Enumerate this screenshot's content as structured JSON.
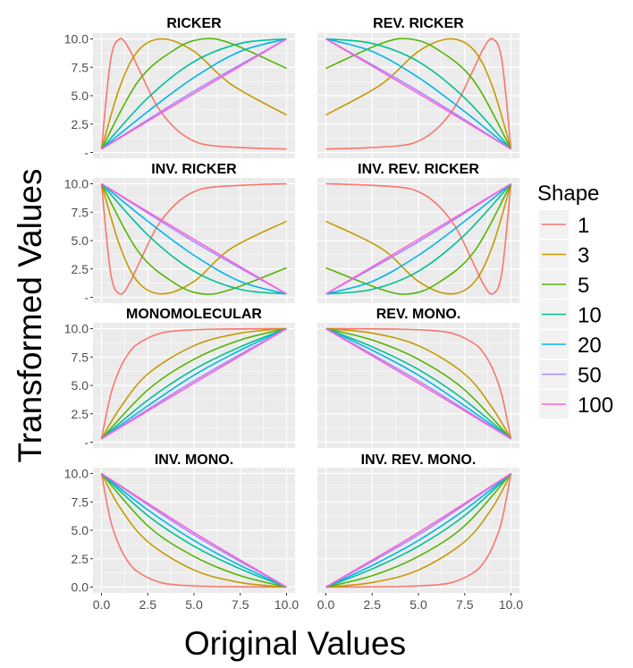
{
  "chart_data": {
    "type": "line",
    "xlabel": "Original Values",
    "ylabel": "Transformed Values",
    "x_ticks": [
      "0.0",
      "2.5",
      "5.0",
      "7.5",
      "10.0"
    ],
    "y_ticks": [
      "",
      "2.5",
      "5.0",
      "7.5",
      "10.0"
    ],
    "y_ticks_bottom_row": [
      "0.0",
      "2.5",
      "5.0",
      "7.5",
      "10.0"
    ],
    "xlim": [
      0,
      10
    ],
    "ylim": [
      0,
      10
    ],
    "grid": true,
    "legend": {
      "title": "Shape",
      "position": "right",
      "entries": [
        "1",
        "3",
        "5",
        "10",
        "20",
        "50",
        "100"
      ]
    },
    "colors": {
      "1": "#F8766D",
      "3": "#C49A00",
      "5": "#53B400",
      "10": "#00C094",
      "20": "#00B6EB",
      "50": "#A58AFF",
      "100": "#FB61D7",
      "panel_bg": "#EBEBEB",
      "grid": "#FFFFFF"
    },
    "panels": [
      {
        "title": "RICKER",
        "transform": "ricker",
        "series": [
          {
            "shape": "1",
            "x": [
              0,
              0.5,
              1,
              1.5,
              2,
              3,
              4,
              5,
              6,
              8,
              10
            ],
            "y": [
              0.3,
              8.2,
              10,
              9.1,
              7.4,
              4.1,
              2.1,
              1.0,
              0.6,
              0.4,
              0.3
            ]
          },
          {
            "shape": "3",
            "x": [
              0,
              1,
              2,
              3.3,
              5,
              7,
              10
            ],
            "y": [
              0.3,
              5.8,
              9.0,
              10,
              8.9,
              6.0,
              3.3
            ]
          },
          {
            "shape": "5",
            "x": [
              0,
              2,
              4,
              5.5,
              7,
              10
            ],
            "y": [
              0.3,
              6.3,
              9.1,
              10,
              9.6,
              7.4
            ]
          },
          {
            "shape": "10",
            "x": [
              0,
              2.5,
              5,
              7.5,
              10
            ],
            "y": [
              0.3,
              4.8,
              8.0,
              9.6,
              10
            ]
          },
          {
            "shape": "20",
            "x": [
              0,
              2.5,
              5,
              7.5,
              10
            ],
            "y": [
              0.3,
              3.6,
              6.6,
              8.9,
              10
            ]
          },
          {
            "shape": "50",
            "x": [
              0,
              5,
              10
            ],
            "y": [
              0.3,
              5.4,
              10
            ]
          },
          {
            "shape": "100",
            "x": [
              0,
              5,
              10
            ],
            "y": [
              0.3,
              5.2,
              10
            ]
          }
        ]
      },
      {
        "title": "REV. RICKER",
        "transform": "rev_ricker",
        "series": [
          {
            "shape": "1",
            "x": [
              0,
              2,
              4,
              5,
              6,
              7,
              8,
              8.5,
              9,
              9.5,
              10
            ],
            "y": [
              0.3,
              0.4,
              0.6,
              1.0,
              2.1,
              4.1,
              7.4,
              9.1,
              10,
              8.2,
              0.3
            ]
          },
          {
            "shape": "3",
            "x": [
              0,
              3,
              5,
              6.7,
              8,
              9,
              10
            ],
            "y": [
              3.3,
              6.0,
              8.9,
              10,
              9.0,
              5.8,
              0.3
            ]
          },
          {
            "shape": "5",
            "x": [
              0,
              3,
              4.5,
              6,
              8,
              10
            ],
            "y": [
              7.4,
              9.6,
              10,
              9.1,
              6.3,
              0.3
            ]
          },
          {
            "shape": "10",
            "x": [
              0,
              2.5,
              5,
              7.5,
              10
            ],
            "y": [
              10,
              9.6,
              8.0,
              4.8,
              0.3
            ]
          },
          {
            "shape": "20",
            "x": [
              0,
              2.5,
              5,
              7.5,
              10
            ],
            "y": [
              10,
              8.9,
              6.6,
              3.6,
              0.3
            ]
          },
          {
            "shape": "50",
            "x": [
              0,
              5,
              10
            ],
            "y": [
              10,
              5.4,
              0.3
            ]
          },
          {
            "shape": "100",
            "x": [
              0,
              5,
              10
            ],
            "y": [
              10,
              5.2,
              0.3
            ]
          }
        ]
      },
      {
        "title": "INV. RICKER",
        "transform": "inv_ricker",
        "series": [
          {
            "shape": "1",
            "x": [
              0,
              0.5,
              1,
              1.5,
              2,
              3,
              4,
              5,
              6,
              8,
              10
            ],
            "y": [
              10,
              2.1,
              0.3,
              1.2,
              2.9,
              6.2,
              8.2,
              9.3,
              9.7,
              9.9,
              10
            ]
          },
          {
            "shape": "3",
            "x": [
              0,
              1,
              2,
              3.3,
              5,
              7,
              10
            ],
            "y": [
              10,
              4.5,
              1.3,
              0.3,
              1.4,
              4.3,
              6.7
            ]
          },
          {
            "shape": "5",
            "x": [
              0,
              2,
              4,
              5.5,
              7,
              10
            ],
            "y": [
              10,
              4.0,
              1.2,
              0.3,
              0.7,
              2.6
            ]
          },
          {
            "shape": "10",
            "x": [
              0,
              2.5,
              5,
              7.5,
              10
            ],
            "y": [
              10,
              5.5,
              2.3,
              0.7,
              0.3
            ]
          },
          {
            "shape": "20",
            "x": [
              0,
              2.5,
              5,
              7.5,
              10
            ],
            "y": [
              10,
              6.7,
              3.7,
              1.4,
              0.3
            ]
          },
          {
            "shape": "50",
            "x": [
              0,
              5,
              10
            ],
            "y": [
              10,
              4.9,
              0.3
            ]
          },
          {
            "shape": "100",
            "x": [
              0,
              5,
              10
            ],
            "y": [
              10,
              5.1,
              0.3
            ]
          }
        ]
      },
      {
        "title": "INV. REV. RICKER",
        "transform": "inv_rev_ricker",
        "series": [
          {
            "shape": "1",
            "x": [
              0,
              2,
              4,
              5,
              6,
              7,
              8,
              8.5,
              9,
              9.5,
              10
            ],
            "y": [
              10,
              9.9,
              9.7,
              9.3,
              8.2,
              6.2,
              2.9,
              1.2,
              0.3,
              2.1,
              10
            ]
          },
          {
            "shape": "3",
            "x": [
              0,
              3,
              5,
              6.7,
              8,
              9,
              10
            ],
            "y": [
              6.7,
              4.3,
              1.4,
              0.3,
              1.3,
              4.5,
              10
            ]
          },
          {
            "shape": "5",
            "x": [
              0,
              3,
              4.5,
              6,
              8,
              10
            ],
            "y": [
              2.6,
              0.7,
              0.3,
              1.2,
              4.0,
              10
            ]
          },
          {
            "shape": "10",
            "x": [
              0,
              2.5,
              5,
              7.5,
              10
            ],
            "y": [
              0.3,
              0.7,
              2.3,
              5.5,
              10
            ]
          },
          {
            "shape": "20",
            "x": [
              0,
              2.5,
              5,
              7.5,
              10
            ],
            "y": [
              0.3,
              1.4,
              3.7,
              6.7,
              10
            ]
          },
          {
            "shape": "50",
            "x": [
              0,
              5,
              10
            ],
            "y": [
              0.3,
              4.9,
              10
            ]
          },
          {
            "shape": "100",
            "x": [
              0,
              5,
              10
            ],
            "y": [
              0.3,
              5.1,
              10
            ]
          }
        ]
      },
      {
        "title": "MONOMOLECULAR",
        "transform": "mono",
        "series": [
          {
            "shape": "1",
            "x": [
              0,
              0.5,
              1,
              1.5,
              2,
              3,
              4,
              6,
              10
            ],
            "y": [
              0.3,
              4.2,
              6.5,
              7.9,
              8.7,
              9.5,
              9.8,
              9.95,
              10
            ]
          },
          {
            "shape": "3",
            "x": [
              0,
              1,
              2.5,
              5,
              7.5,
              10
            ],
            "y": [
              0.3,
              3.0,
              6.0,
              8.5,
              9.6,
              10
            ]
          },
          {
            "shape": "5",
            "x": [
              0,
              2.5,
              5,
              7.5,
              10
            ],
            "y": [
              0.3,
              4.6,
              7.3,
              9.0,
              10
            ]
          },
          {
            "shape": "10",
            "x": [
              0,
              2.5,
              5,
              7.5,
              10
            ],
            "y": [
              0.3,
              3.7,
              6.4,
              8.4,
              10
            ]
          },
          {
            "shape": "20",
            "x": [
              0,
              2.5,
              5,
              7.5,
              10
            ],
            "y": [
              0.3,
              3.2,
              5.9,
              8.1,
              10
            ]
          },
          {
            "shape": "50",
            "x": [
              0,
              5,
              10
            ],
            "y": [
              0.3,
              5.4,
              10
            ]
          },
          {
            "shape": "100",
            "x": [
              0,
              5,
              10
            ],
            "y": [
              0.3,
              5.2,
              10
            ]
          }
        ]
      },
      {
        "title": "REV. MONO.",
        "transform": "rev_mono",
        "series": [
          {
            "shape": "1",
            "x": [
              0,
              4,
              6,
              7,
              8,
              8.5,
              9,
              9.5,
              10
            ],
            "y": [
              10,
              9.95,
              9.8,
              9.5,
              8.7,
              7.9,
              6.5,
              4.2,
              0.3
            ]
          },
          {
            "shape": "3",
            "x": [
              0,
              2.5,
              5,
              7.5,
              9,
              10
            ],
            "y": [
              10,
              9.6,
              8.5,
              6.0,
              3.0,
              0.3
            ]
          },
          {
            "shape": "5",
            "x": [
              0,
              2.5,
              5,
              7.5,
              10
            ],
            "y": [
              10,
              9.0,
              7.3,
              4.6,
              0.3
            ]
          },
          {
            "shape": "10",
            "x": [
              0,
              2.5,
              5,
              7.5,
              10
            ],
            "y": [
              10,
              8.4,
              6.4,
              3.7,
              0.3
            ]
          },
          {
            "shape": "20",
            "x": [
              0,
              2.5,
              5,
              7.5,
              10
            ],
            "y": [
              10,
              8.1,
              5.9,
              3.2,
              0.3
            ]
          },
          {
            "shape": "50",
            "x": [
              0,
              5,
              10
            ],
            "y": [
              10,
              5.4,
              0.3
            ]
          },
          {
            "shape": "100",
            "x": [
              0,
              5,
              10
            ],
            "y": [
              10,
              5.2,
              0.3
            ]
          }
        ]
      },
      {
        "title": "INV. MONO.",
        "transform": "inv_mono",
        "series": [
          {
            "shape": "1",
            "x": [
              0,
              0.5,
              1,
              1.5,
              2,
              3,
              4,
              6,
              10
            ],
            "y": [
              10,
              5.8,
              3.5,
              2.1,
              1.3,
              0.5,
              0.2,
              0.05,
              0
            ]
          },
          {
            "shape": "3",
            "x": [
              0,
              1,
              2.5,
              5,
              7.5,
              10
            ],
            "y": [
              10,
              7.0,
              4.0,
              1.5,
              0.4,
              0
            ]
          },
          {
            "shape": "5",
            "x": [
              0,
              2.5,
              5,
              7.5,
              10
            ],
            "y": [
              10,
              5.4,
              2.7,
              1.0,
              0
            ]
          },
          {
            "shape": "10",
            "x": [
              0,
              2.5,
              5,
              7.5,
              10
            ],
            "y": [
              10,
              6.3,
              3.6,
              1.6,
              0
            ]
          },
          {
            "shape": "20",
            "x": [
              0,
              2.5,
              5,
              7.5,
              10
            ],
            "y": [
              10,
              6.8,
              4.1,
              1.9,
              0
            ]
          },
          {
            "shape": "50",
            "x": [
              0,
              5,
              10
            ],
            "y": [
              10,
              4.6,
              0
            ]
          },
          {
            "shape": "100",
            "x": [
              0,
              5,
              10
            ],
            "y": [
              10,
              4.8,
              0
            ]
          }
        ]
      },
      {
        "title": "INV. REV. MONO.",
        "transform": "inv_rev_mono",
        "series": [
          {
            "shape": "1",
            "x": [
              0,
              4,
              6,
              7,
              8,
              8.5,
              9,
              9.5,
              10
            ],
            "y": [
              0,
              0.05,
              0.2,
              0.5,
              1.3,
              2.1,
              3.5,
              5.8,
              10
            ]
          },
          {
            "shape": "3",
            "x": [
              0,
              2.5,
              5,
              7.5,
              9,
              10
            ],
            "y": [
              0,
              0.4,
              1.5,
              4.0,
              7.0,
              10
            ]
          },
          {
            "shape": "5",
            "x": [
              0,
              2.5,
              5,
              7.5,
              10
            ],
            "y": [
              0,
              1.0,
              2.7,
              5.4,
              10
            ]
          },
          {
            "shape": "10",
            "x": [
              0,
              2.5,
              5,
              7.5,
              10
            ],
            "y": [
              0,
              1.6,
              3.6,
              6.3,
              10
            ]
          },
          {
            "shape": "20",
            "x": [
              0,
              2.5,
              5,
              7.5,
              10
            ],
            "y": [
              0,
              1.9,
              4.1,
              6.8,
              10
            ]
          },
          {
            "shape": "50",
            "x": [
              0,
              5,
              10
            ],
            "y": [
              0,
              4.6,
              10
            ]
          },
          {
            "shape": "100",
            "x": [
              0,
              5,
              10
            ],
            "y": [
              0,
              4.8,
              10
            ]
          }
        ]
      }
    ]
  }
}
